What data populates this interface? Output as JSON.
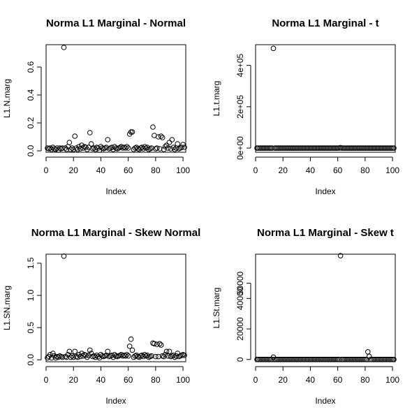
{
  "chart_data": [
    {
      "type": "scatter",
      "title": "Norma L1 Marginal - Normal",
      "xlabel": "Index",
      "ylabel": "L1.N.marg",
      "xlim": [
        0,
        102
      ],
      "ylim": [
        -0.01,
        0.76
      ],
      "xticks": [
        0,
        20,
        40,
        60,
        80,
        100
      ],
      "xtick_labels": [
        "0",
        "20",
        "40",
        "60",
        "80",
        "100"
      ],
      "yticks": [
        0.0,
        0.2,
        0.4,
        0.6
      ],
      "ytick_labels": [
        "0.0",
        "0.2",
        "0.4",
        "0.6"
      ],
      "x": [
        1,
        2,
        3,
        4,
        5,
        6,
        7,
        8,
        9,
        10,
        11,
        12,
        13,
        14,
        15,
        16,
        17,
        18,
        19,
        20,
        21,
        22,
        23,
        24,
        25,
        26,
        27,
        28,
        29,
        30,
        31,
        32,
        33,
        34,
        35,
        36,
        37,
        38,
        39,
        40,
        41,
        42,
        43,
        44,
        45,
        46,
        47,
        48,
        49,
        50,
        51,
        52,
        53,
        54,
        55,
        56,
        57,
        58,
        59,
        60,
        61,
        62,
        63,
        64,
        65,
        66,
        67,
        68,
        69,
        70,
        71,
        72,
        73,
        74,
        75,
        76,
        77,
        78,
        79,
        80,
        81,
        82,
        83,
        84,
        85,
        86,
        87,
        88,
        89,
        90,
        91,
        92,
        93,
        94,
        95,
        96,
        97,
        98,
        99,
        100,
        101
      ],
      "y": [
        0.02,
        0.015,
        0.02,
        0.01,
        0.025,
        0.015,
        0.01,
        0.02,
        0.005,
        0.02,
        0.015,
        0.02,
        0.74,
        0.02,
        0.01,
        0.03,
        0.06,
        0.01,
        0.02,
        0.01,
        0.105,
        0.02,
        0.01,
        0.03,
        0.015,
        0.04,
        0.02,
        0.03,
        0.025,
        0.01,
        0.025,
        0.13,
        0.05,
        0.015,
        0.02,
        0.01,
        0.025,
        0.02,
        0.005,
        0.03,
        0.02,
        0.015,
        0.02,
        0.025,
        0.08,
        0.015,
        0.02,
        0.025,
        0.01,
        0.03,
        0.02,
        0.015,
        0.02,
        0.025,
        0.03,
        0.02,
        0.025,
        0.02,
        0.03,
        0.02,
        0.12,
        0.135,
        0.135,
        0.01,
        0.02,
        0.025,
        0.015,
        0.01,
        0.02,
        0.025,
        0.015,
        0.03,
        0.02,
        0.025,
        0.01,
        0.015,
        0.02,
        0.17,
        0.11,
        0.015,
        0.02,
        0.1,
        0.015,
        0.105,
        0.095,
        0.01,
        0.03,
        0.04,
        0.02,
        0.06,
        0.015,
        0.08,
        0.025,
        0.01,
        0.02,
        0.05,
        0.015,
        0.02,
        0.025,
        0.045,
        0.025
      ]
    },
    {
      "type": "scatter",
      "title": "Norma L1 Marginal - t",
      "xlabel": "Index",
      "ylabel": "L1.t.marg",
      "xlim": [
        0,
        102
      ],
      "ylim": [
        -20000,
        500000
      ],
      "xticks": [
        0,
        20,
        40,
        60,
        80,
        100
      ],
      "xtick_labels": [
        "0",
        "20",
        "40",
        "60",
        "80",
        "100"
      ],
      "yticks": [
        0,
        200000,
        400000
      ],
      "ytick_labels": [
        "0e+00",
        "2e+05",
        "4e+05"
      ],
      "x": [
        1,
        2,
        3,
        4,
        5,
        6,
        7,
        8,
        9,
        10,
        11,
        12,
        13,
        14,
        15,
        16,
        17,
        18,
        19,
        20,
        21,
        22,
        23,
        24,
        25,
        26,
        27,
        28,
        29,
        30,
        31,
        32,
        33,
        34,
        35,
        36,
        37,
        38,
        39,
        40,
        41,
        42,
        43,
        44,
        45,
        46,
        47,
        48,
        49,
        50,
        51,
        52,
        53,
        54,
        55,
        56,
        57,
        58,
        59,
        60,
        61,
        62,
        63,
        64,
        65,
        66,
        67,
        68,
        69,
        70,
        71,
        72,
        73,
        74,
        75,
        76,
        77,
        78,
        79,
        80,
        81,
        82,
        83,
        84,
        85,
        86,
        87,
        88,
        89,
        90,
        91,
        92,
        93,
        94,
        95,
        96,
        97,
        98,
        99,
        100,
        101
      ],
      "y": [
        0,
        0,
        0,
        0,
        0,
        0,
        0,
        0,
        0,
        0,
        0,
        0,
        482000,
        0,
        0,
        0,
        0,
        0,
        0,
        0,
        0,
        0,
        0,
        0,
        0,
        0,
        0,
        0,
        0,
        0,
        0,
        0,
        0,
        0,
        0,
        0,
        0,
        0,
        0,
        0,
        0,
        0,
        0,
        0,
        0,
        0,
        0,
        0,
        0,
        0,
        0,
        0,
        0,
        0,
        0,
        0,
        0,
        0,
        0,
        0,
        0,
        2000,
        0,
        0,
        0,
        0,
        0,
        0,
        0,
        0,
        0,
        0,
        0,
        0,
        0,
        0,
        0,
        0,
        0,
        0,
        0,
        0,
        0,
        0,
        0,
        0,
        0,
        0,
        0,
        0,
        0,
        0,
        0,
        0,
        0,
        0,
        0,
        0,
        0,
        0,
        0
      ]
    },
    {
      "type": "scatter",
      "title": "Norma L1 Marginal - Skew Normal",
      "xlabel": "Index",
      "ylabel": "L1.SN.marg",
      "xlim": [
        0,
        102
      ],
      "ylim": [
        -0.03,
        1.64
      ],
      "xticks": [
        0,
        20,
        40,
        60,
        80,
        100
      ],
      "xtick_labels": [
        "0",
        "20",
        "40",
        "60",
        "80",
        "100"
      ],
      "yticks": [
        0.0,
        0.5,
        1.0,
        1.5
      ],
      "ytick_labels": [
        "0.0",
        "0.5",
        "1.0",
        "1.5"
      ],
      "x": [
        1,
        2,
        3,
        4,
        5,
        6,
        7,
        8,
        9,
        10,
        11,
        12,
        13,
        14,
        15,
        16,
        17,
        18,
        19,
        20,
        21,
        22,
        23,
        24,
        25,
        26,
        27,
        28,
        29,
        30,
        31,
        32,
        33,
        34,
        35,
        36,
        37,
        38,
        39,
        40,
        41,
        42,
        43,
        44,
        45,
        46,
        47,
        48,
        49,
        50,
        51,
        52,
        53,
        54,
        55,
        56,
        57,
        58,
        59,
        60,
        61,
        62,
        63,
        64,
        65,
        66,
        67,
        68,
        69,
        70,
        71,
        72,
        73,
        74,
        75,
        76,
        77,
        78,
        79,
        80,
        81,
        82,
        83,
        84,
        85,
        86,
        87,
        88,
        89,
        90,
        91,
        92,
        93,
        94,
        95,
        96,
        97,
        98,
        99,
        100,
        101
      ],
      "y": [
        0.03,
        0.05,
        0.08,
        0.03,
        0.1,
        0.06,
        0.03,
        0.05,
        0.04,
        0.06,
        0.05,
        0.04,
        1.61,
        0.05,
        0.04,
        0.08,
        0.13,
        0.04,
        0.06,
        0.04,
        0.13,
        0.05,
        0.04,
        0.08,
        0.05,
        0.1,
        0.06,
        0.08,
        0.07,
        0.04,
        0.07,
        0.15,
        0.1,
        0.05,
        0.06,
        0.04,
        0.07,
        0.05,
        0.03,
        0.08,
        0.06,
        0.05,
        0.06,
        0.07,
        0.13,
        0.05,
        0.06,
        0.07,
        0.04,
        0.08,
        0.06,
        0.05,
        0.06,
        0.07,
        0.08,
        0.06,
        0.07,
        0.06,
        0.08,
        0.06,
        0.21,
        0.32,
        0.15,
        0.04,
        0.06,
        0.07,
        0.05,
        0.04,
        0.06,
        0.07,
        0.05,
        0.08,
        0.06,
        0.07,
        0.04,
        0.05,
        0.06,
        0.26,
        0.25,
        0.05,
        0.24,
        0.05,
        0.25,
        0.23,
        0.06,
        0.05,
        0.08,
        0.13,
        0.06,
        0.13,
        0.05,
        0.06,
        0.07,
        0.04,
        0.06,
        0.1,
        0.05,
        0.06,
        0.07,
        0.08,
        0.07
      ]
    },
    {
      "type": "scatter",
      "title": "Norma L1 Marginal - Skew t",
      "xlabel": "Index",
      "ylabel": "L1.St.marg",
      "xlim": [
        0,
        102
      ],
      "ylim": [
        -1500,
        69000
      ],
      "xticks": [
        0,
        20,
        40,
        60,
        80,
        100
      ],
      "xtick_labels": [
        "0",
        "20",
        "40",
        "60",
        "80",
        "100"
      ],
      "yticks": [
        0,
        20000,
        40000,
        50000
      ],
      "ytick_labels": [
        "0",
        "20000",
        "40000",
        "50000"
      ],
      "x": [
        1,
        2,
        3,
        4,
        5,
        6,
        7,
        8,
        9,
        10,
        11,
        12,
        13,
        14,
        15,
        16,
        17,
        18,
        19,
        20,
        21,
        22,
        23,
        24,
        25,
        26,
        27,
        28,
        29,
        30,
        31,
        32,
        33,
        34,
        35,
        36,
        37,
        38,
        39,
        40,
        41,
        42,
        43,
        44,
        45,
        46,
        47,
        48,
        49,
        50,
        51,
        52,
        53,
        54,
        55,
        56,
        57,
        58,
        59,
        60,
        61,
        62,
        63,
        64,
        65,
        66,
        67,
        68,
        69,
        70,
        71,
        72,
        73,
        74,
        75,
        76,
        77,
        78,
        79,
        80,
        81,
        82,
        83,
        84,
        85,
        86,
        87,
        88,
        89,
        90,
        91,
        92,
        93,
        94,
        95,
        96,
        97,
        98,
        99,
        100,
        101
      ],
      "y": [
        0,
        0,
        0,
        0,
        0,
        0,
        0,
        0,
        0,
        0,
        0,
        0,
        1500,
        0,
        0,
        0,
        0,
        0,
        0,
        0,
        0,
        0,
        0,
        0,
        0,
        0,
        0,
        0,
        0,
        0,
        0,
        0,
        0,
        0,
        0,
        0,
        0,
        0,
        0,
        0,
        0,
        0,
        0,
        0,
        0,
        0,
        0,
        0,
        0,
        0,
        0,
        0,
        0,
        0,
        0,
        0,
        0,
        0,
        0,
        0,
        0,
        68000,
        0,
        0,
        0,
        0,
        0,
        0,
        0,
        0,
        0,
        0,
        0,
        0,
        0,
        0,
        0,
        0,
        0,
        0,
        0,
        5000,
        2000,
        0,
        0,
        0,
        0,
        0,
        0,
        0,
        0,
        0,
        0,
        0,
        0,
        0,
        0,
        0,
        0,
        0,
        0
      ]
    }
  ]
}
